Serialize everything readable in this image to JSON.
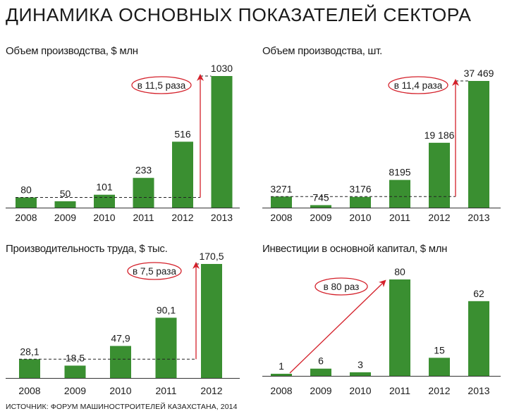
{
  "header": {
    "title": "ДИНАМИКА ОСНОВНЫХ ПОКАЗАТЕЛЕЙ СЕКТОРА"
  },
  "source": "ИСТОЧНИК: ФОРУМ МАШИНОСТРОИТЕЛЕЙ КАЗАХСТАНА, 2014",
  "colors": {
    "bar": "#3a8f31",
    "arrow": "#d4202a",
    "text": "#1a1a1a",
    "axis": "#333333"
  },
  "chart_data": [
    {
      "type": "bar",
      "title": "Объем производства, $ млн",
      "categories": [
        "2008",
        "2009",
        "2010",
        "2011",
        "2012",
        "2013"
      ],
      "values": [
        80,
        50,
        101,
        233,
        516,
        1030
      ],
      "value_labels": [
        "80",
        "50",
        "101",
        "233",
        "516",
        "1030"
      ],
      "annotation": "в 11,5 раза",
      "xlabel": "",
      "ylabel": "",
      "ylim": [
        0,
        1030
      ]
    },
    {
      "type": "bar",
      "title": "Объем производства, шт.",
      "categories": [
        "2008",
        "2009",
        "2010",
        "2011",
        "2012",
        "2013"
      ],
      "values": [
        3271,
        745,
        3176,
        8195,
        19186,
        37469
      ],
      "value_labels": [
        "3271",
        "745",
        "3176",
        "8195",
        "19 186",
        "37 469"
      ],
      "annotation": "в 11,4 раза",
      "xlabel": "",
      "ylabel": "",
      "ylim": [
        0,
        37469
      ]
    },
    {
      "type": "bar",
      "title": "Производительность труда, $ тыс.",
      "categories": [
        "2008",
        "2009",
        "2010",
        "2011",
        "2012"
      ],
      "values": [
        28.1,
        18.5,
        47.9,
        90.1,
        170.5
      ],
      "value_labels": [
        "28,1",
        "18,5",
        "47,9",
        "90,1",
        "170,5"
      ],
      "annotation": "в 7,5 раза",
      "xlabel": "",
      "ylabel": "",
      "ylim": [
        0,
        170.5
      ]
    },
    {
      "type": "bar",
      "title": "Инвестиции в основной капитал, $ млн",
      "categories": [
        "2008",
        "2009",
        "2010",
        "2011",
        "2012",
        "2013"
      ],
      "values": [
        1,
        6,
        3,
        80,
        15,
        62
      ],
      "value_labels": [
        "1",
        "6",
        "3",
        "80",
        "15",
        "62"
      ],
      "annotation": "в 80 раз",
      "xlabel": "",
      "ylabel": "",
      "ylim": [
        0,
        80
      ]
    }
  ]
}
